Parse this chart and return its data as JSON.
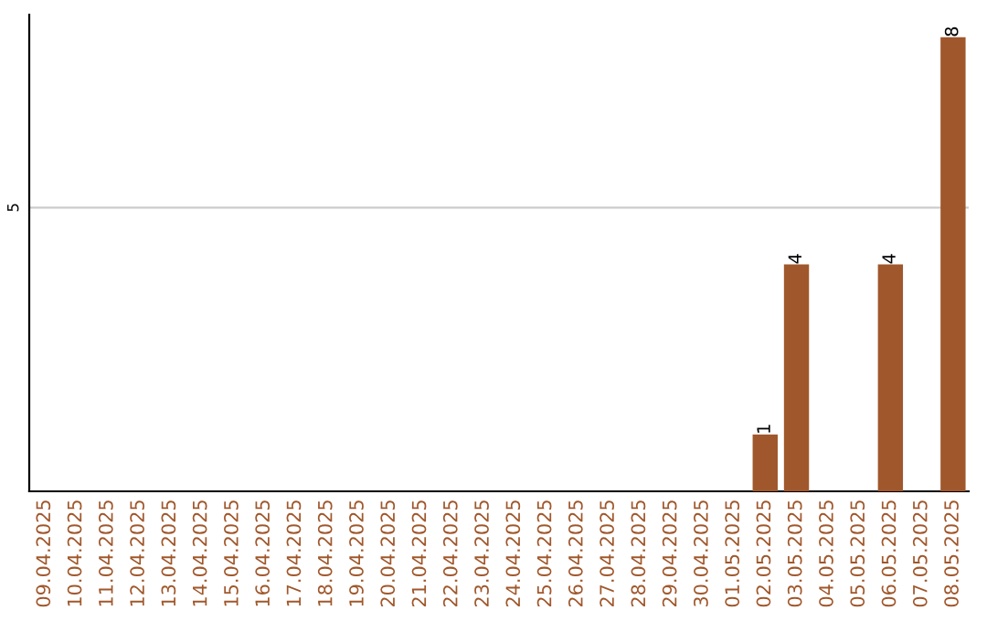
{
  "chart_data": {
    "type": "bar",
    "categories": [
      "09.04.2025",
      "10.04.2025",
      "11.04.2025",
      "12.04.2025",
      "13.04.2025",
      "14.04.2025",
      "15.04.2025",
      "16.04.2025",
      "17.04.2025",
      "18.04.2025",
      "19.04.2025",
      "20.04.2025",
      "21.04.2025",
      "22.04.2025",
      "23.04.2025",
      "24.04.2025",
      "25.04.2025",
      "26.04.2025",
      "27.04.2025",
      "28.04.2025",
      "29.04.2025",
      "30.04.2025",
      "01.05.2025",
      "02.05.2025",
      "03.05.2025",
      "04.05.2025",
      "05.05.2025",
      "06.05.2025",
      "07.05.2025",
      "08.05.2025"
    ],
    "values": [
      null,
      null,
      null,
      null,
      null,
      null,
      null,
      null,
      null,
      null,
      null,
      null,
      null,
      null,
      null,
      null,
      null,
      null,
      null,
      null,
      null,
      null,
      null,
      1,
      4,
      null,
      null,
      4,
      null,
      8
    ],
    "data_labels": true,
    "color": "#a0572b",
    "ylim": [
      0,
      8.4
    ],
    "yticks": [
      5
    ],
    "grid": "y",
    "legend": false
  }
}
